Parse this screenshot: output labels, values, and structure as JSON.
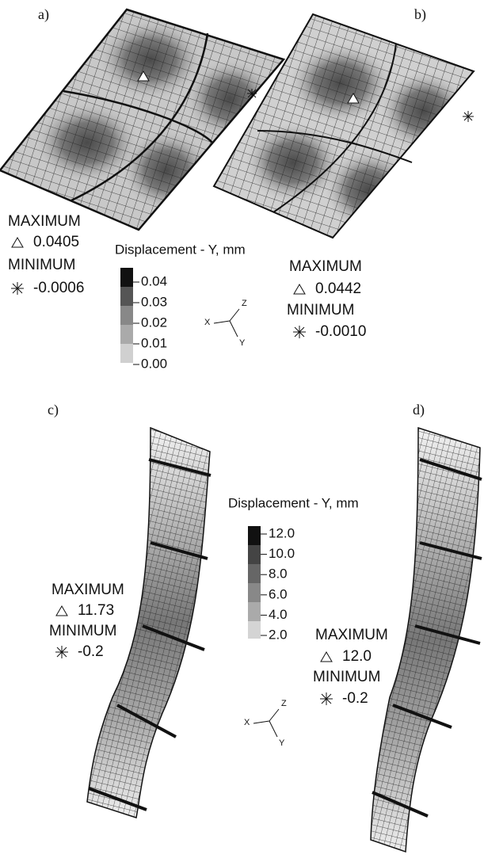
{
  "panels": [
    {
      "label": "a)",
      "maximum_label": "MAXIMUM",
      "maximum": "0.0405",
      "minimum_label": "MINIMUM",
      "minimum": "-0.0006"
    },
    {
      "label": "b)",
      "maximum_label": "MAXIMUM",
      "maximum": "0.0442",
      "minimum_label": "MINIMUM",
      "minimum": "-0.0010"
    },
    {
      "label": "c)",
      "maximum_label": "MAXIMUM",
      "maximum": "11.73",
      "minimum_label": "MINIMUM",
      "minimum": "-0.2"
    },
    {
      "label": "d)",
      "maximum_label": "MAXIMUM",
      "maximum": "12.0",
      "minimum_label": "MINIMUM",
      "minimum": "-0.2"
    }
  ],
  "legends": [
    {
      "title": "Displacement - Y, mm",
      "ticks": [
        "0.04",
        "0.03",
        "0.02",
        "0.01",
        "0.00"
      ]
    },
    {
      "title": "Displacement - Y, mm",
      "ticks": [
        "12.0",
        "10.0",
        "8.0",
        "6.0",
        "4.0",
        "2.0"
      ]
    }
  ],
  "axes": [
    {
      "x": "X",
      "y": "Y",
      "z": "Z"
    },
    {
      "x": "X",
      "y": "Y",
      "z": "Z"
    }
  ]
}
